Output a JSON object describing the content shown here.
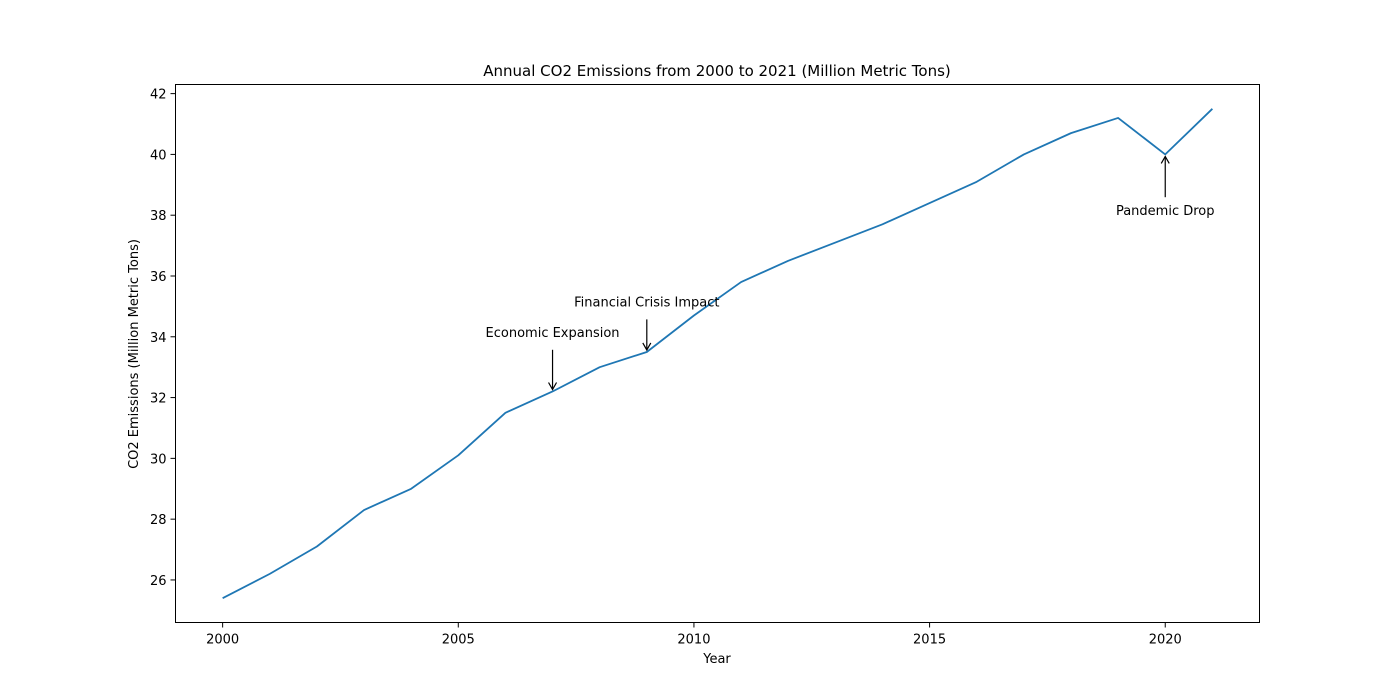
{
  "chart_data": {
    "type": "line",
    "title": "Annual CO2 Emissions from 2000 to 2021 (Million Metric Tons)",
    "xlabel": "Year",
    "ylabel": "CO2 Emissions (Million Metric Tons)",
    "xlim": [
      1999,
      2022
    ],
    "ylim": [
      24.6,
      42.3
    ],
    "xticks": [
      2000,
      2005,
      2010,
      2015,
      2020
    ],
    "yticks": [
      26,
      28,
      30,
      32,
      34,
      36,
      38,
      40,
      42
    ],
    "grid": false,
    "series": [
      {
        "color": "#1f77b4",
        "x": [
          2000,
          2001,
          2002,
          2003,
          2004,
          2005,
          2006,
          2007,
          2008,
          2009,
          2010,
          2011,
          2012,
          2013,
          2014,
          2015,
          2016,
          2017,
          2018,
          2019,
          2020,
          2021
        ],
        "y": [
          25.4,
          26.2,
          27.1,
          28.3,
          29.0,
          30.1,
          31.5,
          32.2,
          33.0,
          33.5,
          34.7,
          35.8,
          36.5,
          37.1,
          37.7,
          38.4,
          39.1,
          40.0,
          40.7,
          41.2,
          40.0,
          41.5
        ]
      }
    ],
    "annotations": [
      {
        "text": "Economic Expansion",
        "x": 2007,
        "y": 32.2,
        "text_x": 2007,
        "text_y": 34.0
      },
      {
        "text": "Financial Crisis Impact",
        "x": 2009,
        "y": 33.5,
        "text_x": 2009,
        "text_y": 35.0
      },
      {
        "text": "Pandemic Drop",
        "x": 2020,
        "y": 40.0,
        "text_x": 2020,
        "text_y": 38.0
      }
    ]
  }
}
